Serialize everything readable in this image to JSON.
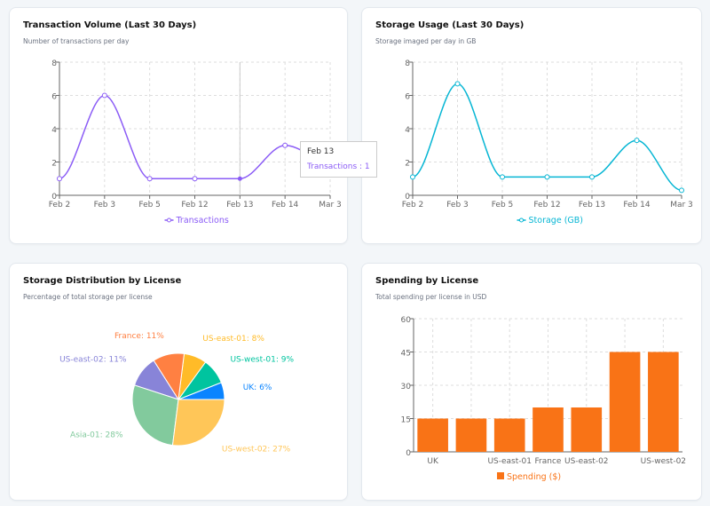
{
  "charts": [
    {
      "type": "line",
      "title": "Transaction Volume (Last 30 Days)",
      "subtitle": "Number of transactions per day",
      "x": [
        "Feb 2",
        "Feb 3",
        "Feb 5",
        "Feb 12",
        "Feb 13",
        "Feb 14",
        "Mar 3"
      ],
      "series": [
        {
          "name": "Transactions",
          "values": [
            1,
            6,
            1,
            1,
            1,
            3,
            2
          ]
        }
      ],
      "ylim": [
        0,
        8
      ],
      "yticks": [
        0,
        2,
        4,
        6,
        8
      ],
      "grid": true,
      "legend": "bottom",
      "color": "#8b5cf6",
      "tooltip": {
        "title": "Feb 13",
        "label": "Transactions : 1"
      }
    },
    {
      "type": "line",
      "title": "Storage Usage (Last 30 Days)",
      "subtitle": "Storage imaged per day in GB",
      "x": [
        "Feb 2",
        "Feb 3",
        "Feb 5",
        "Feb 12",
        "Feb 13",
        "Feb 14",
        "Mar 3"
      ],
      "series": [
        {
          "name": "Storage (GB)",
          "values": [
            1.1,
            6.7,
            1.1,
            1.1,
            1.1,
            3.3,
            0.3
          ]
        }
      ],
      "ylim": [
        0,
        8
      ],
      "yticks": [
        0,
        2,
        4,
        6,
        8
      ],
      "grid": true,
      "legend": "bottom",
      "color": "#06b6d4"
    },
    {
      "type": "pie",
      "title": "Storage Distribution by License",
      "subtitle": "Percentage of total storage per license",
      "slices": [
        {
          "name": "UK",
          "value": 6,
          "label": "UK: 6%",
          "color": "#0a84ff"
        },
        {
          "name": "US-west-01",
          "value": 9,
          "label": "US-west-01: 9%",
          "color": "#00c49f"
        },
        {
          "name": "US-east-01",
          "value": 8,
          "label": "US-east-01: 8%",
          "color": "#ffbb28"
        },
        {
          "name": "France",
          "value": 11,
          "label": "France: 11%",
          "color": "#ff8042"
        },
        {
          "name": "US-east-02",
          "value": 11,
          "label": "US-east-02: 11%",
          "color": "#8884d8"
        },
        {
          "name": "Asia-01",
          "value": 28,
          "label": "Asia-01: 28%",
          "color": "#82ca9d"
        },
        {
          "name": "US-west-02",
          "value": 27,
          "label": "US-west-02: 27%",
          "color": "#ffc658"
        }
      ]
    },
    {
      "type": "bar",
      "title": "Spending by License",
      "subtitle": "Total spending per license in USD",
      "categories": [
        "UK",
        "",
        "US-east-01",
        "France",
        "US-east-02",
        "",
        "US-west-02"
      ],
      "series": [
        {
          "name": "Spending ($)",
          "values": [
            15,
            15,
            15,
            20,
            20,
            45,
            45
          ]
        }
      ],
      "ylim": [
        0,
        60
      ],
      "yticks": [
        0,
        15,
        30,
        45,
        60
      ],
      "grid": true,
      "legend": "bottom",
      "color": "#f97316"
    }
  ]
}
